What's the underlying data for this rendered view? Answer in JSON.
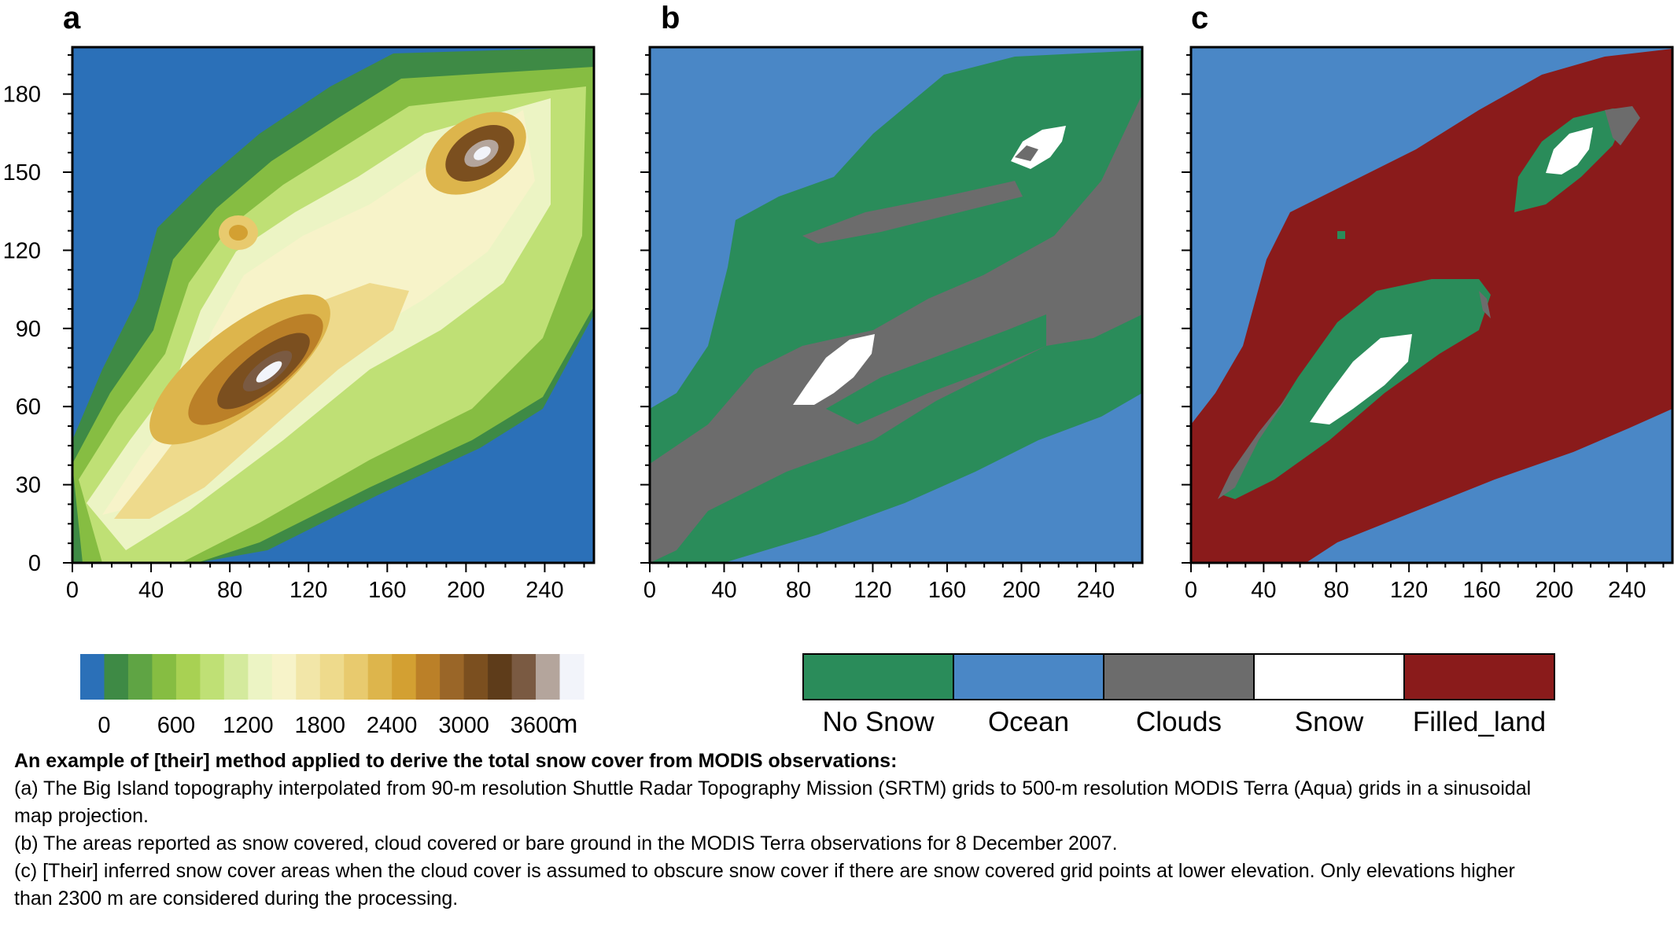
{
  "panels": [
    {
      "id": "a",
      "letter": "a"
    },
    {
      "id": "b",
      "letter": "b"
    },
    {
      "id": "c",
      "letter": "c"
    }
  ],
  "axes": {
    "x_ticks": [
      "0",
      "40",
      "80",
      "120",
      "160",
      "200",
      "240"
    ],
    "y_ticks": [
      "0",
      "30",
      "60",
      "90",
      "120",
      "150",
      "180"
    ],
    "xlim": [
      0,
      265
    ],
    "ylim": [
      0,
      198
    ]
  },
  "topo_colorbar": {
    "colors": [
      "#2b70b8",
      "#3e8a45",
      "#5fa444",
      "#86bd42",
      "#a8d153",
      "#bfe075",
      "#d4ea9d",
      "#ecf4c4",
      "#f7f3c9",
      "#f2e6a8",
      "#eeda8c",
      "#e8ca6e",
      "#ddb54c",
      "#d3a032",
      "#bb8028",
      "#9a6628",
      "#7b4f1f",
      "#5e3c1a",
      "#7a5a42",
      "#b4a59c",
      "#f2f4fa"
    ],
    "tick_labels": [
      "0",
      "600",
      "1200",
      "1800",
      "2400",
      "3000",
      "3600"
    ],
    "unit": "m"
  },
  "category_legend": [
    {
      "label": "No Snow",
      "color": "#2a8c5a"
    },
    {
      "label": "Ocean",
      "color": "#4a87c6"
    },
    {
      "label": "Clouds",
      "color": "#6c6c6c"
    },
    {
      "label": "Snow",
      "color": "#ffffff"
    },
    {
      "label": "Filled_land",
      "color": "#8a1b1b"
    }
  ],
  "caption": {
    "title": "An example of [their] method applied to derive the total snow cover from MODIS observations:",
    "lines": [
      "(a) The Big Island topography interpolated from 90-m resolution Shuttle Radar Topography Mission (SRTM) grids to 500-m resolution MODIS Terra (Aqua) grids in a sinusoidal",
      "map projection.",
      "(b) The areas reported as snow covered, cloud covered or bare ground in the MODIS Terra observations for 8 December 2007.",
      "(c) [Their] inferred snow cover areas when the cloud cover is assumed to obscure snow cover if there are snow covered grid points at lower elevation. Only elevations higher",
      "than 2300 m are considered during the processing."
    ]
  }
}
